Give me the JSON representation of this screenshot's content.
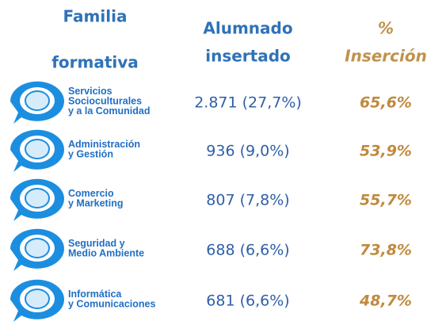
{
  "header": {
    "family": [
      "Familia",
      "formativa"
    ],
    "students": [
      "Alumnado",
      "insertado"
    ],
    "rate": [
      "%",
      "Inserción"
    ]
  },
  "rows": [
    {
      "family": [
        "Servicios",
        "Socioculturales",
        "y a la Comunidad"
      ],
      "students": "2.871 (27,7%)",
      "rate": "65,6%"
    },
    {
      "family": [
        "Administración",
        "y Gestión"
      ],
      "students": "936 (9,0%)",
      "rate": "53,9%"
    },
    {
      "family": [
        "Comercio",
        "y Marketing"
      ],
      "students": "807 (7,8%)",
      "rate": "55,7%"
    },
    {
      "family": [
        "Seguridad y",
        "Medio Ambiente"
      ],
      "students": "688 (6,6%)",
      "rate": "73,8%"
    },
    {
      "family": [
        "Informática",
        "y Comunicaciones"
      ],
      "students": "681 (6,6%)",
      "rate": "48,7%"
    }
  ]
}
